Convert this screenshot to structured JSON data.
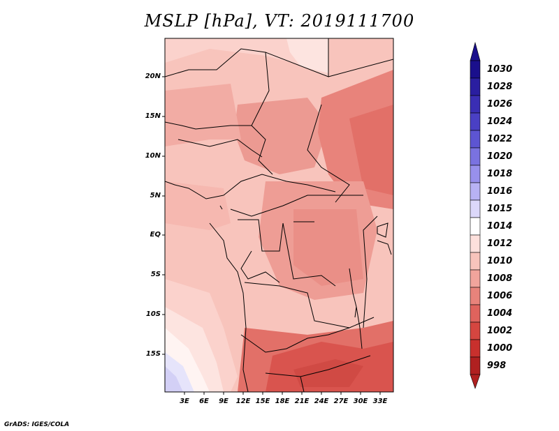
{
  "title": "MSLP [hPa], VT: 2019111700",
  "y_ticks": [
    "20N",
    "15N",
    "10N",
    "5N",
    "EQ",
    "5S",
    "10S",
    "15S"
  ],
  "x_ticks": [
    "3E",
    "6E",
    "9E",
    "12E",
    "15E",
    "18E",
    "21E",
    "24E",
    "27E",
    "30E",
    "33E"
  ],
  "colorbar": {
    "labels": [
      "1030",
      "1028",
      "1026",
      "1024",
      "1022",
      "1020",
      "1018",
      "1016",
      "1015",
      "1014",
      "1012",
      "1010",
      "1008",
      "1006",
      "1004",
      "1002",
      "1000",
      "998"
    ],
    "colors": [
      "#1a0f8c",
      "#2a1ea0",
      "#3a2eb4",
      "#4a40c4",
      "#5d55d2",
      "#7a72e0",
      "#9890ec",
      "#b8b2f4",
      "#dcd8fa",
      "#ffffff",
      "#fde0dc",
      "#f8c4bc",
      "#f1a49c",
      "#e8837b",
      "#df635d",
      "#d54640",
      "#c8302d",
      "#b02020"
    ]
  },
  "footer": "GrADS: IGES/COLA"
}
